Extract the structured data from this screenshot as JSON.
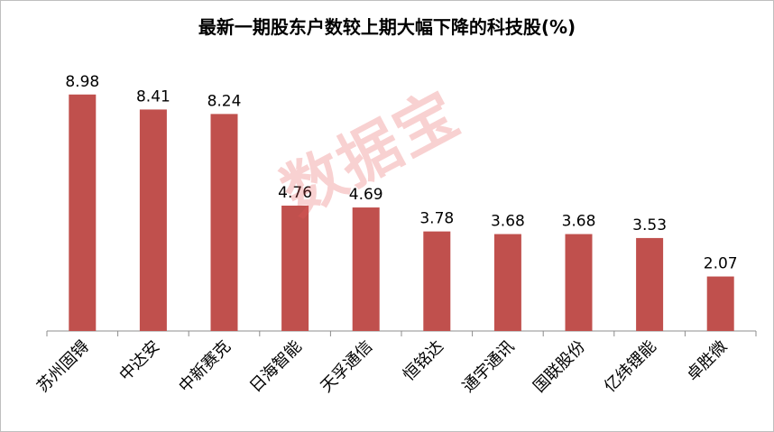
{
  "chart_data": {
    "type": "bar",
    "title": "最新一期股东户数较上期大幅下降的科技股(%)",
    "categories": [
      "苏州固锝",
      "中达安",
      "中新赛克",
      "日海智能",
      "天孚通信",
      "恒铭达",
      "通宇通讯",
      "国联股份",
      "亿纬锂能",
      "卓胜微"
    ],
    "values": [
      8.98,
      8.41,
      8.24,
      4.76,
      4.69,
      3.78,
      3.68,
      3.68,
      3.53,
      2.07
    ],
    "value_labels": [
      "8.98",
      "8.41",
      "8.24",
      "4.76",
      "4.69",
      "3.78",
      "3.68",
      "3.68",
      "3.53",
      "2.07"
    ],
    "ylim": [
      0,
      10
    ],
    "grid": false,
    "legend": "none",
    "bar_color": "#c0504d"
  },
  "watermark": "数据宝"
}
